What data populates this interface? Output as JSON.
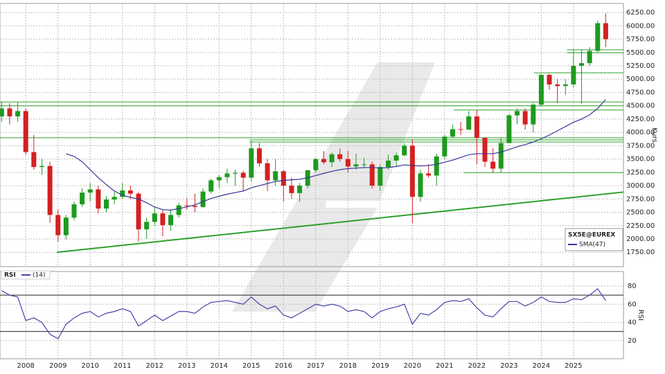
{
  "chart_data": {
    "type": "candlestick",
    "name": "SX5E@EUREX",
    "up_color": "#1e9a1e",
    "down_color": "#d42020",
    "x": [
      2007.25,
      2007.5,
      2007.75,
      2008,
      2008.25,
      2008.5,
      2008.75,
      2009,
      2009.25,
      2009.5,
      2009.75,
      2010,
      2010.25,
      2010.5,
      2010.75,
      2011,
      2011.25,
      2011.5,
      2011.75,
      2012,
      2012.25,
      2012.5,
      2012.75,
      2013,
      2013.25,
      2013.5,
      2013.75,
      2014,
      2014.25,
      2014.5,
      2014.75,
      2015,
      2015.25,
      2015.5,
      2015.75,
      2016,
      2016.25,
      2016.5,
      2016.75,
      2017,
      2017.25,
      2017.5,
      2017.75,
      2018,
      2018.25,
      2018.5,
      2018.75,
      2019,
      2019.25,
      2019.5,
      2019.75,
      2020,
      2020.25,
      2020.5,
      2020.75,
      2021,
      2021.25,
      2021.5,
      2021.75,
      2022,
      2022.25,
      2022.5,
      2022.75,
      2023,
      2023.25,
      2023.5,
      2023.75,
      2024,
      2024.25,
      2024.5,
      2024.75,
      2025,
      2025.25,
      2025.5,
      2025.75,
      2026
    ],
    "open": [
      4300,
      4450,
      4300,
      4400,
      3630,
      3350,
      3370,
      2450,
      2070,
      2400,
      2650,
      2870,
      2930,
      2570,
      2740,
      2790,
      2910,
      2850,
      2180,
      2320,
      2480,
      2260,
      2450,
      2630,
      2620,
      2600,
      2890,
      3100,
      3160,
      3230,
      3240,
      3150,
      3700,
      3420,
      3100,
      3270,
      3000,
      2860,
      3000,
      3290,
      3500,
      3440,
      3590,
      3500,
      3360,
      3400,
      3400,
      3000,
      3350,
      3470,
      3570,
      3750,
      2790,
      3230,
      3190,
      3550,
      3920,
      4060,
      4050,
      4300,
      3900,
      3450,
      3320,
      3800,
      4320,
      4400,
      4150,
      4520,
      5080,
      4900,
      4870,
      4900,
      5250,
      5300,
      5530,
      6050
    ],
    "high": [
      4570,
      4550,
      4560,
      4450,
      3950,
      3500,
      3450,
      2550,
      2450,
      2700,
      2950,
      3050,
      3000,
      2800,
      2900,
      3050,
      3000,
      2880,
      2400,
      2600,
      2550,
      2550,
      2680,
      2760,
      2850,
      2950,
      3130,
      3200,
      3320,
      3300,
      3280,
      3840,
      3800,
      3500,
      3500,
      3300,
      3150,
      3050,
      3300,
      3520,
      3650,
      3620,
      3700,
      3650,
      3600,
      3520,
      3450,
      3400,
      3580,
      3620,
      3800,
      3870,
      3300,
      3400,
      3600,
      3950,
      4150,
      4200,
      4400,
      4420,
      3900,
      3700,
      3900,
      4350,
      4450,
      4450,
      4550,
      5100,
      5100,
      5000,
      5000,
      5550,
      5550,
      5600,
      6100,
      6230
    ],
    "low": [
      4200,
      4150,
      4200,
      3580,
      3300,
      3200,
      2300,
      1950,
      1990,
      2350,
      2600,
      2700,
      2480,
      2500,
      2650,
      2750,
      2750,
      1950,
      2000,
      2250,
      2050,
      2150,
      2400,
      2550,
      2500,
      2580,
      2850,
      2950,
      3050,
      3000,
      2900,
      3080,
      3350,
      2900,
      3000,
      2700,
      2750,
      2700,
      2950,
      3250,
      3400,
      3350,
      3450,
      3250,
      3300,
      3320,
      2950,
      2900,
      3300,
      3350,
      3550,
      2300,
      2700,
      3150,
      3000,
      3500,
      3900,
      3950,
      4050,
      3400,
      3350,
      3250,
      3250,
      3800,
      4150,
      4050,
      4000,
      4500,
      4800,
      4550,
      4700,
      4850,
      4540,
      5250,
      5500,
      5600
    ],
    "close": [
      4450,
      4300,
      4400,
      3630,
      3350,
      3370,
      2450,
      2070,
      2400,
      2650,
      2870,
      2930,
      2570,
      2740,
      2790,
      2910,
      2850,
      2180,
      2320,
      2480,
      2260,
      2450,
      2630,
      2620,
      2600,
      2890,
      3100,
      3160,
      3230,
      3240,
      3150,
      3700,
      3420,
      3100,
      3270,
      3000,
      2860,
      3000,
      3290,
      3500,
      3440,
      3590,
      3500,
      3360,
      3400,
      3400,
      3000,
      3350,
      3470,
      3570,
      3750,
      2790,
      3230,
      3190,
      3550,
      3920,
      4060,
      4050,
      4300,
      3900,
      3450,
      3320,
      3800,
      4320,
      4400,
      4150,
      4520,
      5080,
      4900,
      4870,
      4900,
      5250,
      5300,
      5530,
      6050,
      5750
    ],
    "sma": {
      "name": "SMA(47)",
      "color": "#35359a",
      "values": [
        null,
        null,
        null,
        null,
        null,
        null,
        null,
        null,
        3600,
        3550,
        3450,
        3300,
        3150,
        3020,
        2900,
        2820,
        2780,
        2750,
        2680,
        2600,
        2550,
        2540,
        2570,
        2600,
        2640,
        2700,
        2760,
        2800,
        2840,
        2870,
        2900,
        2960,
        3000,
        3040,
        3080,
        3100,
        3110,
        3120,
        3150,
        3190,
        3230,
        3270,
        3300,
        3320,
        3330,
        3340,
        3340,
        3330,
        3340,
        3360,
        3390,
        3380,
        3370,
        3380,
        3400,
        3440,
        3480,
        3530,
        3580,
        3600,
        3600,
        3600,
        3630,
        3680,
        3730,
        3770,
        3820,
        3880,
        3950,
        4030,
        4110,
        4190,
        4250,
        4330,
        4450,
        4620
      ]
    },
    "xlim": [
      2007.2,
      2026.55
    ],
    "xticks": [
      2008,
      2009,
      2010,
      2011,
      2012,
      2013,
      2014,
      2015,
      2016,
      2017,
      2018,
      2019,
      2020,
      2021,
      2022,
      2023,
      2024,
      2025
    ],
    "ylim": [
      1480,
      6420
    ],
    "yticks": [
      {
        "value": 1750,
        "label": "1750.00"
      },
      {
        "value": 2000,
        "label": "2000.00"
      },
      {
        "value": 2250,
        "label": "2250.00"
      },
      {
        "value": 2500,
        "label": "2500.00"
      },
      {
        "value": 2750,
        "label": "2750.00"
      },
      {
        "value": 3000,
        "label": "3000.00"
      },
      {
        "value": 3250,
        "label": "3250.00"
      },
      {
        "value": 3500,
        "label": "3500.00"
      },
      {
        "value": 3750,
        "label": "3750.00"
      },
      {
        "value": 4000,
        "label": "4000.00"
      },
      {
        "value": 4250,
        "label": "4250.00"
      },
      {
        "value": 4500,
        "label": "4500.00"
      },
      {
        "value": 4750,
        "label": "4750.00"
      },
      {
        "value": 5000,
        "label": "5000.00"
      },
      {
        "value": 5250,
        "label": "5250.00"
      },
      {
        "value": 5500,
        "label": "5500.00"
      },
      {
        "value": 5750,
        "label": "5750.00"
      },
      {
        "value": 6000,
        "label": "6000.00"
      },
      {
        "value": 6250,
        "label": "6250.00"
      }
    ],
    "ylabel": "Kurs",
    "grid": true,
    "level_color": "#2ca02c",
    "levels": [
      {
        "value": 4570,
        "from": 2007.2
      },
      {
        "value": 4500,
        "from": 2007.2
      },
      {
        "value": 4420,
        "from": 2021.28
      },
      {
        "value": 5118,
        "from": 2023.77
      },
      {
        "value": 5495,
        "from": 2024.8
      },
      {
        "value": 5550,
        "from": 2024.8
      },
      {
        "value": 3900,
        "from": 2007.2
      },
      {
        "value": 3860,
        "from": 2014.94
      },
      {
        "value": 3820,
        "from": 2014.94
      },
      {
        "value": 3245,
        "from": 2021.6
      }
    ],
    "trendline": {
      "x": [
        2008.97,
        2026.55
      ],
      "y": [
        1750,
        2880
      ]
    },
    "rsi": {
      "type": "line",
      "title": "RSI",
      "name": "(14)",
      "color": "#4444a8",
      "ylabel": "RSI",
      "values": [
        75,
        70,
        68,
        42,
        45,
        40,
        27,
        22,
        38,
        45,
        50,
        52,
        46,
        50,
        52,
        55,
        52,
        36,
        42,
        48,
        42,
        47,
        52,
        52,
        50,
        57,
        62,
        63,
        64,
        62,
        60,
        68,
        60,
        55,
        58,
        48,
        45,
        50,
        55,
        60,
        58,
        60,
        58,
        52,
        54,
        52,
        45,
        52,
        55,
        57,
        60,
        38,
        50,
        48,
        54,
        62,
        64,
        63,
        66,
        56,
        48,
        46,
        55,
        63,
        63,
        58,
        62,
        68,
        63,
        62,
        62,
        66,
        65,
        70,
        77,
        64
      ],
      "ylim": [
        0,
        96
      ],
      "yticks": [
        20,
        40,
        60,
        80
      ],
      "bands": [
        30,
        70
      ]
    }
  }
}
